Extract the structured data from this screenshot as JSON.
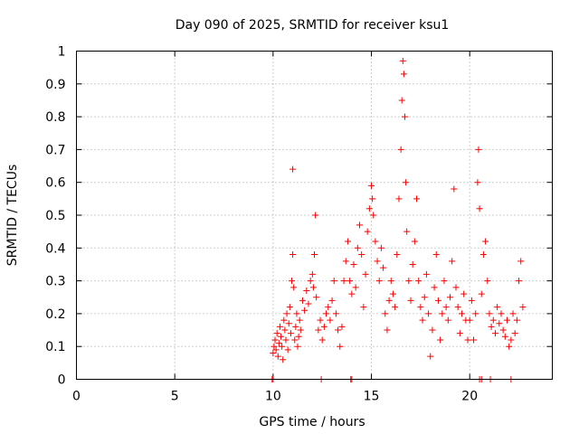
{
  "chart_data": {
    "type": "scatter",
    "title": "Day 090 of 2025, SRMTID for receiver ksu1",
    "xlabel": "GPS time / hours",
    "ylabel": "SRMTID / TECUs",
    "xlim": [
      0,
      24.2
    ],
    "ylim": [
      0,
      1
    ],
    "xticks": [
      0,
      5,
      10,
      15,
      20
    ],
    "xtick_labels": [
      "0",
      "5",
      "10",
      "15",
      "20"
    ],
    "yticks": [
      0,
      0.1,
      0.2,
      0.3,
      0.4,
      0.5,
      0.6,
      0.7,
      0.8,
      0.9,
      1
    ],
    "ytick_labels": [
      "0",
      "0.1",
      "0.2",
      "0.3",
      "0.4",
      "0.5",
      "0.6",
      "0.7",
      "0.8",
      "0.9",
      "1"
    ],
    "grid": true,
    "marker": "+",
    "color": "#ff0000",
    "series": [
      {
        "name": "SRMTID",
        "points": [
          [
            9.95,
            0.0
          ],
          [
            10.0,
            0.0
          ],
          [
            12.45,
            0.0
          ],
          [
            13.95,
            0.0
          ],
          [
            14.0,
            0.0
          ],
          [
            20.5,
            0.0
          ],
          [
            20.6,
            0.0
          ],
          [
            21.05,
            0.0
          ],
          [
            22.1,
            0.0
          ],
          [
            10.0,
            0.08
          ],
          [
            10.05,
            0.1
          ],
          [
            10.1,
            0.12
          ],
          [
            10.15,
            0.09
          ],
          [
            10.2,
            0.14
          ],
          [
            10.25,
            0.07
          ],
          [
            10.3,
            0.11
          ],
          [
            10.35,
            0.16
          ],
          [
            10.4,
            0.13
          ],
          [
            10.45,
            0.1
          ],
          [
            10.5,
            0.06
          ],
          [
            10.55,
            0.18
          ],
          [
            10.6,
            0.15
          ],
          [
            10.65,
            0.12
          ],
          [
            10.7,
            0.2
          ],
          [
            10.75,
            0.09
          ],
          [
            10.8,
            0.17
          ],
          [
            10.85,
            0.22
          ],
          [
            10.9,
            0.14
          ],
          [
            10.95,
            0.3
          ],
          [
            11.0,
            0.64
          ],
          [
            11.0,
            0.38
          ],
          [
            11.05,
            0.28
          ],
          [
            11.1,
            0.12
          ],
          [
            11.15,
            0.16
          ],
          [
            11.2,
            0.2
          ],
          [
            11.25,
            0.1
          ],
          [
            11.3,
            0.13
          ],
          [
            11.35,
            0.18
          ],
          [
            11.4,
            0.15
          ],
          [
            11.5,
            0.24
          ],
          [
            11.6,
            0.21
          ],
          [
            11.7,
            0.27
          ],
          [
            11.8,
            0.23
          ],
          [
            11.9,
            0.3
          ],
          [
            12.0,
            0.32
          ],
          [
            12.05,
            0.28
          ],
          [
            12.1,
            0.38
          ],
          [
            12.15,
            0.5
          ],
          [
            12.2,
            0.25
          ],
          [
            12.3,
            0.15
          ],
          [
            12.4,
            0.18
          ],
          [
            12.5,
            0.12
          ],
          [
            12.6,
            0.16
          ],
          [
            12.7,
            0.2
          ],
          [
            12.8,
            0.22
          ],
          [
            12.9,
            0.18
          ],
          [
            13.0,
            0.24
          ],
          [
            13.1,
            0.3
          ],
          [
            13.2,
            0.2
          ],
          [
            13.3,
            0.15
          ],
          [
            13.4,
            0.1
          ],
          [
            13.5,
            0.16
          ],
          [
            13.6,
            0.3
          ],
          [
            13.7,
            0.36
          ],
          [
            13.8,
            0.42
          ],
          [
            13.9,
            0.3
          ],
          [
            14.0,
            0.26
          ],
          [
            14.1,
            0.35
          ],
          [
            14.2,
            0.28
          ],
          [
            14.3,
            0.4
          ],
          [
            14.4,
            0.47
          ],
          [
            14.5,
            0.38
          ],
          [
            14.6,
            0.22
          ],
          [
            14.7,
            0.32
          ],
          [
            14.8,
            0.45
          ],
          [
            14.9,
            0.52
          ],
          [
            15.0,
            0.59
          ],
          [
            15.05,
            0.55
          ],
          [
            15.1,
            0.5
          ],
          [
            15.2,
            0.42
          ],
          [
            15.3,
            0.36
          ],
          [
            15.4,
            0.3
          ],
          [
            15.5,
            0.4
          ],
          [
            15.6,
            0.34
          ],
          [
            15.7,
            0.2
          ],
          [
            15.8,
            0.15
          ],
          [
            15.9,
            0.24
          ],
          [
            16.0,
            0.3
          ],
          [
            16.1,
            0.26
          ],
          [
            16.2,
            0.22
          ],
          [
            16.3,
            0.38
          ],
          [
            16.4,
            0.55
          ],
          [
            16.5,
            0.7
          ],
          [
            16.55,
            0.85
          ],
          [
            16.6,
            0.97
          ],
          [
            16.65,
            0.93
          ],
          [
            16.7,
            0.8
          ],
          [
            16.75,
            0.6
          ],
          [
            16.8,
            0.45
          ],
          [
            16.9,
            0.3
          ],
          [
            17.0,
            0.24
          ],
          [
            17.1,
            0.35
          ],
          [
            17.2,
            0.42
          ],
          [
            17.3,
            0.55
          ],
          [
            17.4,
            0.3
          ],
          [
            17.5,
            0.22
          ],
          [
            17.6,
            0.18
          ],
          [
            17.7,
            0.25
          ],
          [
            17.8,
            0.32
          ],
          [
            17.9,
            0.2
          ],
          [
            18.0,
            0.07
          ],
          [
            18.1,
            0.15
          ],
          [
            18.2,
            0.28
          ],
          [
            18.3,
            0.38
          ],
          [
            18.4,
            0.24
          ],
          [
            18.5,
            0.12
          ],
          [
            18.6,
            0.2
          ],
          [
            18.7,
            0.3
          ],
          [
            18.8,
            0.22
          ],
          [
            18.9,
            0.18
          ],
          [
            19.0,
            0.25
          ],
          [
            19.1,
            0.36
          ],
          [
            19.2,
            0.58
          ],
          [
            19.3,
            0.28
          ],
          [
            19.4,
            0.22
          ],
          [
            19.5,
            0.14
          ],
          [
            19.6,
            0.2
          ],
          [
            19.7,
            0.26
          ],
          [
            19.8,
            0.18
          ],
          [
            19.9,
            0.12
          ],
          [
            20.0,
            0.18
          ],
          [
            20.1,
            0.24
          ],
          [
            20.2,
            0.12
          ],
          [
            20.3,
            0.2
          ],
          [
            20.4,
            0.6
          ],
          [
            20.45,
            0.7
          ],
          [
            20.5,
            0.52
          ],
          [
            20.6,
            0.26
          ],
          [
            20.7,
            0.38
          ],
          [
            20.8,
            0.42
          ],
          [
            20.9,
            0.3
          ],
          [
            21.0,
            0.2
          ],
          [
            21.1,
            0.16
          ],
          [
            21.2,
            0.18
          ],
          [
            21.3,
            0.14
          ],
          [
            21.4,
            0.22
          ],
          [
            21.5,
            0.17
          ],
          [
            21.6,
            0.2
          ],
          [
            21.7,
            0.15
          ],
          [
            21.8,
            0.13
          ],
          [
            21.9,
            0.18
          ],
          [
            22.0,
            0.1
          ],
          [
            22.1,
            0.12
          ],
          [
            22.2,
            0.2
          ],
          [
            22.3,
            0.14
          ],
          [
            22.4,
            0.18
          ],
          [
            22.5,
            0.3
          ],
          [
            22.6,
            0.36
          ],
          [
            22.7,
            0.22
          ]
        ]
      }
    ]
  }
}
